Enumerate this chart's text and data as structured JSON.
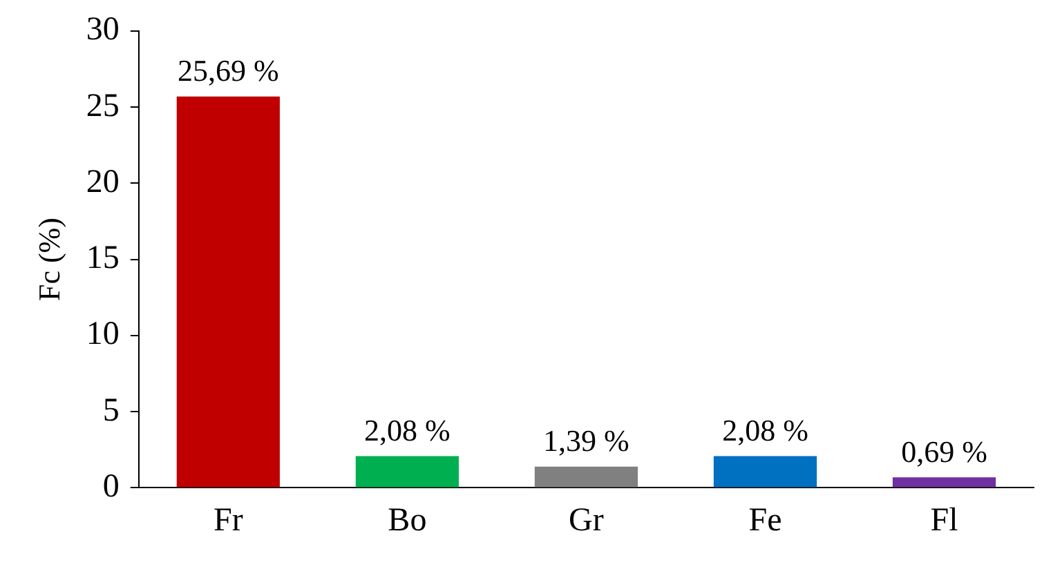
{
  "chart_data": {
    "type": "bar",
    "ylabel": "Fc (%)",
    "categories": [
      "Fr",
      "Bo",
      "Gr",
      "Fe",
      "Fl"
    ],
    "values": [
      25.69,
      2.08,
      1.39,
      2.08,
      0.69
    ],
    "colors": [
      "#c00000",
      "#00b050",
      "#808080",
      "#0070c0",
      "#7030a0"
    ],
    "value_labels": [
      "25,69 %",
      "2,08 %",
      "1,39 %",
      "2,08 %",
      "0,69 %"
    ],
    "ylim": [
      0,
      30
    ],
    "yticks": [
      0,
      5,
      10,
      15,
      20,
      25,
      30
    ],
    "grid": false,
    "legend": false
  }
}
